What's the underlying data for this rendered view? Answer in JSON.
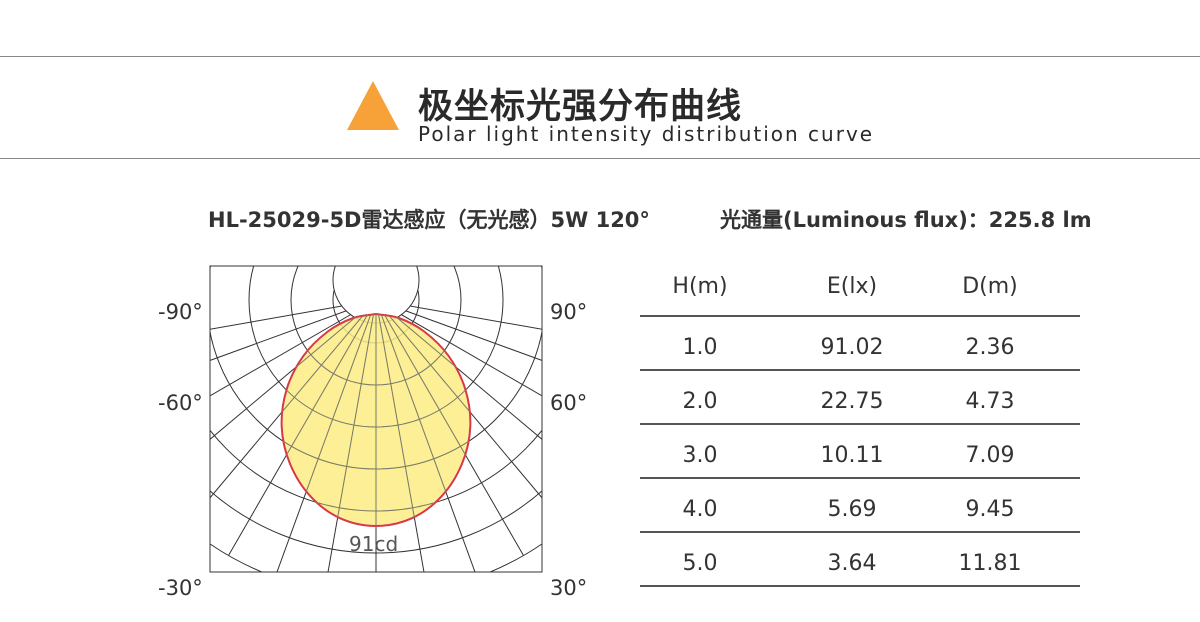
{
  "header": {
    "title_cn": "极坐标光强分布曲线",
    "title_en": "Polar light intensity distribution curve",
    "accent_color": "#f7a239"
  },
  "product": {
    "model": "HL-25029-5D雷达感应（无光感）5W  120°",
    "flux": "光通量(Luminous flux)：225.8 lm"
  },
  "chart_data": [
    {
      "type": "polar",
      "peak_label": "91cd",
      "angle_labels": {
        "left": [
          "-90°",
          "-60°",
          "-30°"
        ],
        "right": [
          "90°",
          "60°",
          "30°"
        ]
      },
      "curve": {
        "angles_deg": [
          0,
          10,
          20,
          30,
          40,
          50,
          60,
          70,
          80,
          90
        ],
        "intensity_cd": [
          91,
          89,
          83,
          74,
          63,
          50,
          36,
          22,
          10,
          0
        ]
      },
      "fill_color": "#fbec84",
      "stroke_color": "#d9384a",
      "grid": true
    },
    {
      "type": "table",
      "columns": [
        "H(m)",
        "E(lx)",
        "D(m)"
      ],
      "rows": [
        [
          "1.0",
          "91.02",
          "2.36"
        ],
        [
          "2.0",
          "22.75",
          "4.73"
        ],
        [
          "3.0",
          "10.11",
          "7.09"
        ],
        [
          "4.0",
          "5.69",
          "9.45"
        ],
        [
          "5.0",
          "3.64",
          "11.81"
        ]
      ]
    }
  ]
}
